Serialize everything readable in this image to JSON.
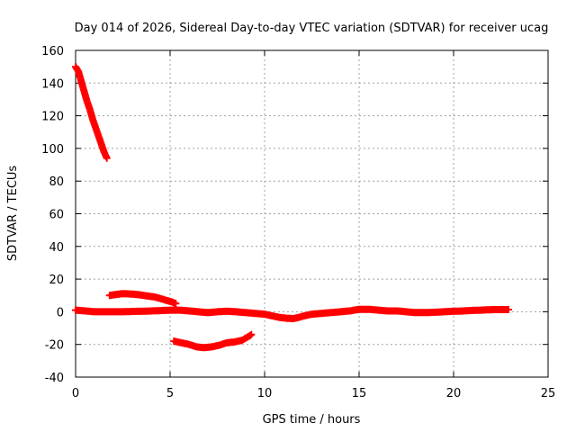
{
  "chart_data": {
    "type": "scatter",
    "title": "Day 014 of 2026, Sidereal Day-to-day VTEC variation (SDTVAR) for receiver ucag",
    "xlabel": "GPS time / hours",
    "ylabel": "SDTVAR / TECUs",
    "xlim": [
      0,
      25
    ],
    "ylim": [
      -40,
      160
    ],
    "xticks": [
      "0",
      "5",
      "10",
      "15",
      "20",
      "25"
    ],
    "yticks": [
      "160",
      "140",
      "120",
      "100",
      "80",
      "60",
      "40",
      "20",
      "0",
      "-20",
      "-40"
    ],
    "grid": true,
    "series": [
      {
        "name": "segment-1",
        "color": "#ff0000",
        "x": [
          0.0,
          0.15,
          0.3,
          0.45,
          0.6,
          0.75,
          0.9,
          1.05,
          1.2,
          1.35,
          1.5,
          1.65
        ],
        "y": [
          150,
          147,
          141,
          135,
          129,
          124,
          118,
          113,
          108,
          103,
          98,
          94
        ]
      },
      {
        "name": "segment-2",
        "color": "#ff0000",
        "x": [
          1.8,
          2.1,
          2.4,
          2.7,
          3.0,
          3.3,
          3.6,
          3.9,
          4.2,
          4.5,
          4.8,
          5.1,
          5.3
        ],
        "y": [
          10,
          10.5,
          11,
          11,
          10.8,
          10.5,
          10,
          9.5,
          9,
          8,
          7,
          6,
          5
        ]
      },
      {
        "name": "segment-3",
        "color": "#ff0000",
        "x": [
          5.2,
          5.6,
          6.0,
          6.4,
          6.8,
          7.2,
          7.6,
          8.0,
          8.4,
          8.8,
          9.1,
          9.3
        ],
        "y": [
          -18,
          -19,
          -20,
          -21.5,
          -22,
          -21.5,
          -20.5,
          -19,
          -18.5,
          -17.5,
          -15.5,
          -14
        ]
      },
      {
        "name": "segment-4",
        "color": "#ff0000",
        "x": [
          0.0,
          0.5,
          1.0,
          1.5,
          2.0,
          2.5,
          3.0,
          3.5,
          4.0,
          4.5,
          5.0,
          5.5,
          6.0,
          6.5,
          7.0,
          7.5,
          8.0,
          8.5,
          9.0,
          9.5,
          10.0,
          10.4,
          10.8,
          11.2,
          11.5,
          11.8,
          12.1,
          12.5,
          13.0,
          13.5,
          14.0,
          14.5,
          15.0,
          15.5,
          16.0,
          16.5,
          17.0,
          17.5,
          18.0,
          18.5,
          19.0,
          19.5,
          20.0,
          20.5,
          21.0,
          21.5,
          21.8,
          22.1,
          22.4,
          22.7,
          22.9
        ],
        "y": [
          1,
          0.5,
          0,
          0,
          0,
          0,
          0.2,
          0.3,
          0.5,
          0.7,
          1,
          1,
          0.5,
          0,
          -0.5,
          0,
          0.3,
          0,
          -0.5,
          -1,
          -1.5,
          -2.5,
          -3.5,
          -4,
          -4.2,
          -3.5,
          -2.5,
          -1.5,
          -1,
          -0.5,
          0,
          0.5,
          1.5,
          1.5,
          1,
          0.5,
          0.5,
          0,
          -0.5,
          -0.5,
          -0.3,
          0,
          0.3,
          0.5,
          0.8,
          1,
          1.2,
          1.3,
          1.3,
          1.3,
          1.3
        ]
      }
    ]
  }
}
